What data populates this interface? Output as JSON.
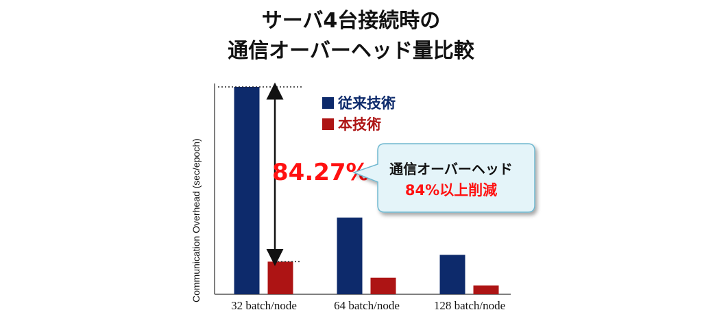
{
  "title_line1": "サーバ4台接続時の",
  "title_line2": "通信オーバーヘッド量比較",
  "annotation": {
    "percent": "84.27%",
    "callout_line1": "通信オーバーヘッド",
    "callout_line2": "84%以上削減"
  },
  "colors": {
    "conventional": "#0d2a6b",
    "proposed": "#ad1414",
    "highlight": "#ff1111"
  },
  "chart_data": {
    "type": "bar",
    "title": "サーバ4台接続時の 通信オーバーヘッド量比較",
    "ylabel": "Communication Overhead (sec/epoch)",
    "xlabel": "",
    "categories": [
      "32 batch/node",
      "64 batch/node",
      "128 batch/node"
    ],
    "series": [
      {
        "name": "従来技術",
        "values": [
          100,
          37,
          19
        ]
      },
      {
        "name": "本技術",
        "values": [
          15.73,
          8,
          4.2
        ]
      }
    ],
    "ylim": [
      0,
      100
    ],
    "grid": false,
    "legend_position": "top-right"
  }
}
